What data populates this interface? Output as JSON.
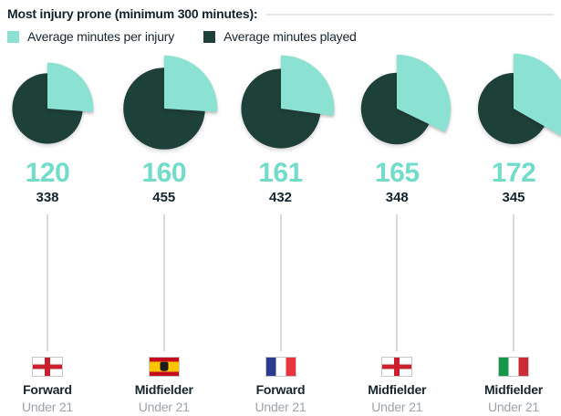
{
  "header": {
    "title": "Most injury prone (minimum 300 minutes):"
  },
  "legend": {
    "injury_label": "Average minutes per injury",
    "played_label": "Average minutes played"
  },
  "colors": {
    "injury_teal": "#8BE2D3",
    "played_dark_green": "#1D4038",
    "big_number_teal": "#72DCCB",
    "text_dark": "#16242C",
    "text_gray": "#9CA4AB"
  },
  "chart_data": {
    "type": "pie",
    "title": "Most injury prone (minimum 300 minutes)",
    "legend": [
      "Average minutes per injury",
      "Average minutes played"
    ],
    "legend_position": "top",
    "note": "Five exploded pie charts; teal wedge angle = injury/(injury+played) share starting at 12 o'clock clockwise; circle size scales with minutes played",
    "players": [
      {
        "avg_minutes_per_injury": 120,
        "avg_minutes_played": 338,
        "country": "England",
        "flag": "england",
        "position": "Forward",
        "age_group": "Under 21"
      },
      {
        "avg_minutes_per_injury": 160,
        "avg_minutes_played": 455,
        "country": "Spain",
        "flag": "spain",
        "position": "Midfielder",
        "age_group": "Under 21"
      },
      {
        "avg_minutes_per_injury": 161,
        "avg_minutes_played": 432,
        "country": "France",
        "flag": "france",
        "position": "Forward",
        "age_group": "Under 21"
      },
      {
        "avg_minutes_per_injury": 165,
        "avg_minutes_played": 348,
        "country": "England",
        "flag": "england",
        "position": "Midfielder",
        "age_group": "Under 21"
      },
      {
        "avg_minutes_per_injury": 172,
        "avg_minutes_played": 345,
        "country": "Italy",
        "flag": "italy",
        "position": "Midfielder",
        "age_group": "Under 21"
      }
    ]
  }
}
